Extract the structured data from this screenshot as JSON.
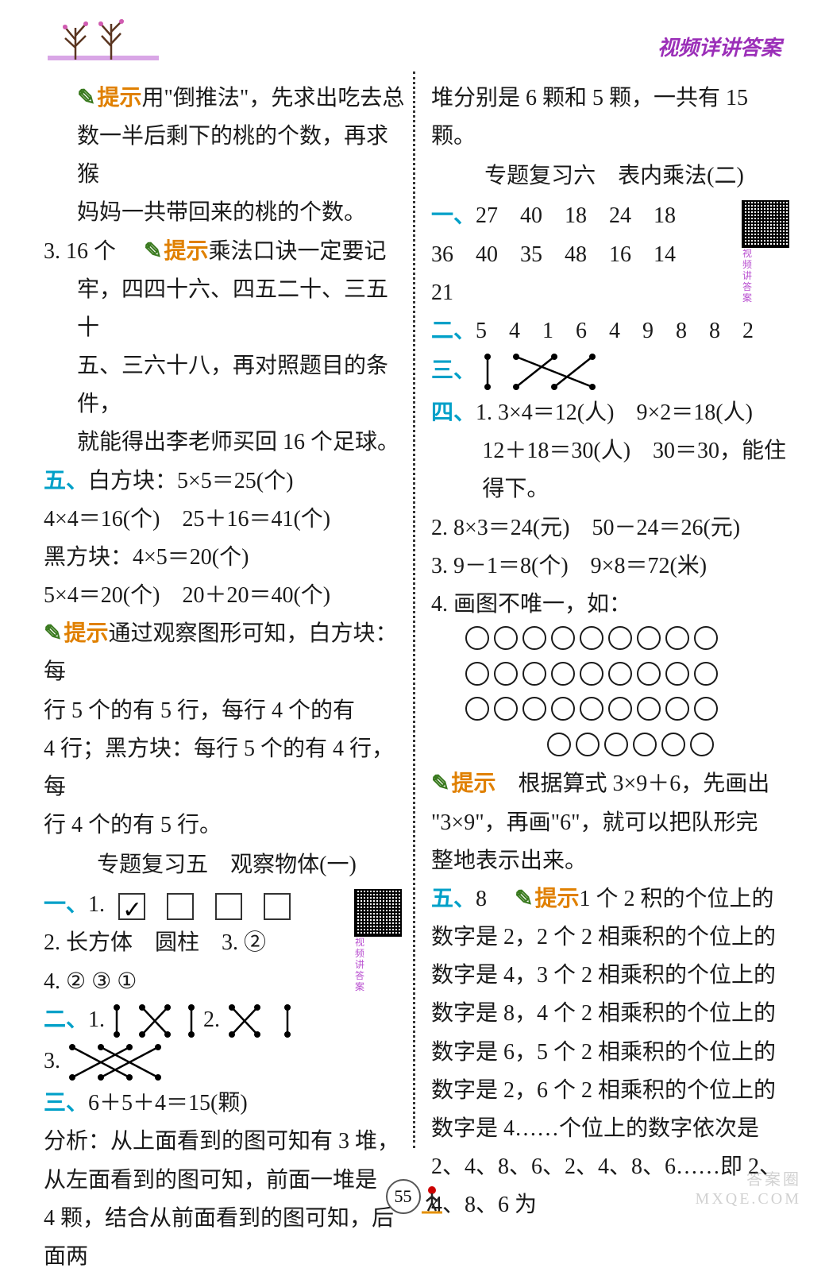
{
  "header": {
    "title": "视频详讲答案"
  },
  "left": {
    "p1_hint_label": "提示",
    "p1_text": "用\"倒推法\"，先求出吃去总",
    "p2": "数一半后剩下的桃的个数，再求猴",
    "p3": "妈妈一共带回来的桃的个数。",
    "q3_num": "3.",
    "q3_ans": "16 个",
    "q3_hint_label": "提示",
    "q3_hint": "乘法口诀一定要记",
    "q3_l2": "牢，四四十六、四五二十、三五十",
    "q3_l3": "五、三六十八，再对照题目的条件，",
    "q3_l4": "就能得出李老师买回 16 个足球。",
    "s5_label": "五、",
    "s5_l1": "白方块：5×5＝25(个)",
    "s5_l2": "4×4＝16(个)　25＋16＝41(个)",
    "s5_l3": "黑方块：4×5＝20(个)",
    "s5_l4": "5×4＝20(个)　20＋20＝40(个)",
    "s5_hint_label": "提示",
    "s5_h1": "通过观察图形可知，白方块：每",
    "s5_h2": "行 5 个的有 5 行，每行 4 个的有",
    "s5_h3": "4 行；黑方块：每行 5 个的有 4 行，每",
    "s5_h4": "行 4 个的有 5 行。",
    "topic5_title": "专题复习五　观察物体(一)",
    "t5_s1_label": "一、",
    "t5_s1_q1": "1.",
    "t5_s1_q2": "2. 长方体　圆柱　3. ②",
    "t5_s1_q4": "4. ② ③ ①",
    "t5_s2_label": "二、",
    "t5_s2_q1": "1.",
    "t5_s2_q2": "2.",
    "t5_s2_q3": "3.",
    "t5_s3_label": "三、",
    "t5_s3_eq": "6＋5＋4＝15(颗)",
    "t5_s3_l1": "分析：从上面看到的图可知有 3 堆，",
    "t5_s3_l2": "从左面看到的图可知，前面一堆是",
    "t5_s3_l3": "4 颗，结合从前面看到的图可知，后面两",
    "qr_label": "视频讲答案"
  },
  "right": {
    "cont": "堆分别是 6 颗和 5 颗，一共有 15 颗。",
    "topic6_title": "专题复习六　表内乘法(二)",
    "t6_s1_label": "一、",
    "t6_s1_r1": "27　40　18　24　18",
    "t6_s1_r2": "36　40　35　48　16　14",
    "t6_s1_r3": "21",
    "t6_s2_label": "二、",
    "t6_s2_vals": "5　4　1　6　4　9　8　8　2",
    "t6_s3_label": "三、",
    "t6_s4_label": "四、",
    "t6_s4_q1a": "1. 3×4＝12(人)　9×2＝18(人)",
    "t6_s4_q1b": "12＋18＝30(人)　30＝30，能住得下。",
    "t6_s4_q2": "2. 8×3＝24(元)　50－24＝26(元)",
    "t6_s4_q3": "3. 9－1＝8(个)　9×8＝72(米)",
    "t6_s4_q4": "4. 画图不唯一，如：",
    "circles": {
      "rows": [
        9,
        9,
        9,
        6
      ]
    },
    "t6_hint_label": "提示",
    "t6_h1": "根据算式 3×9＋6，先画出",
    "t6_h2": "\"3×9\"，再画\"6\"，就可以把队形完",
    "t6_h3": "整地表示出来。",
    "t6_s5_label": "五、",
    "t6_s5_ans": "8",
    "t6_s5_hint_label": "提示",
    "t6_s5_l1": "1 个 2 积的个位上的",
    "t6_s5_l2": "数字是 2，2 个 2 相乘积的个位上的",
    "t6_s5_l3": "数字是 4，3 个 2 相乘积的个位上的",
    "t6_s5_l4": "数字是 8，4 个 2 相乘积的个位上的",
    "t6_s5_l5": "数字是 6，5 个 2 相乘积的个位上的",
    "t6_s5_l6": "数字是 2，6 个 2 相乘积的个位上的",
    "t6_s5_l7": "数字是 4……个位上的数字依次是",
    "t6_s5_l8": "2、4、8、6、2、4、8、6……即 2、4、8、6 为",
    "qr_label": "视频讲答案"
  },
  "footer": {
    "page": "55"
  },
  "watermark": {
    "l1": "答案圈",
    "l2": "MXQE.COM"
  },
  "colors": {
    "section_label": "#00a0c8",
    "hint_label": "#e08000",
    "header_title": "#9b2fb8",
    "text": "#1a1a1a"
  }
}
